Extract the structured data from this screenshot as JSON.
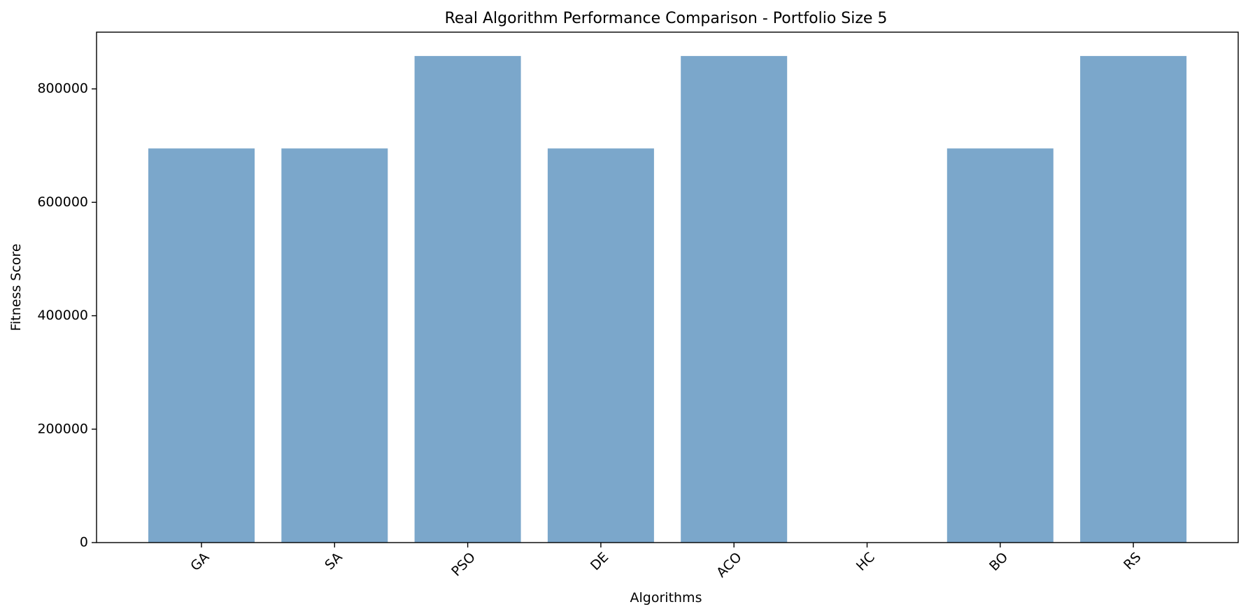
{
  "chart_data": {
    "type": "bar",
    "title": "Real Algorithm Performance Comparison - Portfolio Size 5",
    "xlabel": "Algorithms",
    "ylabel": "Fitness Score",
    "categories": [
      "GA",
      "SA",
      "PSO",
      "DE",
      "ACO",
      "HC",
      "BO",
      "RS"
    ],
    "values": [
      695000,
      695000,
      858000,
      695000,
      858000,
      0,
      695000,
      858000
    ],
    "ylim": [
      0,
      900000
    ],
    "yticks": [
      0,
      200000,
      400000,
      600000,
      800000
    ],
    "grid": false,
    "legend": "none",
    "bar_color": "#7ba7cb"
  }
}
